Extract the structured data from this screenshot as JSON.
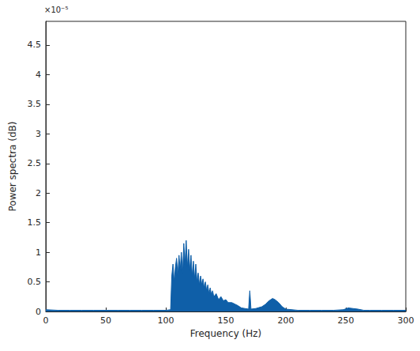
{
  "chart_data": {
    "type": "area",
    "x_label": "Frequency (Hz)",
    "y_label": "Power spectra (dB)",
    "annotations": [
      "×10⁻⁵"
    ],
    "color": "#0f5fa8",
    "grid": false,
    "x": [
      0,
      10,
      20,
      30,
      40,
      50,
      60,
      70,
      80,
      90,
      100,
      104,
      105,
      106,
      107,
      108,
      109,
      110,
      111,
      112,
      113,
      114,
      115,
      116,
      117,
      118,
      119,
      120,
      121,
      122,
      123,
      124,
      125,
      126,
      127,
      128,
      129,
      130,
      131,
      132,
      133,
      134,
      135,
      136,
      137,
      138,
      139,
      140,
      142,
      144,
      146,
      148,
      150,
      152,
      155,
      158,
      160,
      163,
      166,
      169,
      170,
      171,
      175,
      180,
      183,
      186,
      189,
      191,
      194,
      197,
      200,
      210,
      220,
      230,
      240,
      248,
      252,
      256,
      260,
      265,
      270,
      280,
      290,
      300
    ],
    "values": [
      0.03,
      0.02,
      0.02,
      0.02,
      0.02,
      0.02,
      0.02,
      0.02,
      0.02,
      0.02,
      0.02,
      0.03,
      0.6,
      0.8,
      0.5,
      0.75,
      0.9,
      0.6,
      0.95,
      0.7,
      1.0,
      0.65,
      1.15,
      0.8,
      1.2,
      0.75,
      1.05,
      0.7,
      0.95,
      0.6,
      0.85,
      0.55,
      0.8,
      0.5,
      0.65,
      0.45,
      0.6,
      0.45,
      0.55,
      0.4,
      0.5,
      0.35,
      0.45,
      0.3,
      0.4,
      0.28,
      0.35,
      0.25,
      0.3,
      0.2,
      0.25,
      0.18,
      0.2,
      0.15,
      0.15,
      0.12,
      0.1,
      0.06,
      0.05,
      0.04,
      0.35,
      0.04,
      0.05,
      0.08,
      0.12,
      0.18,
      0.22,
      0.2,
      0.15,
      0.08,
      0.04,
      0.02,
      0.02,
      0.02,
      0.02,
      0.03,
      0.06,
      0.05,
      0.04,
      0.02,
      0.02,
      0.02,
      0.02,
      0.02
    ],
    "xlim": [
      0,
      300
    ],
    "xticks": [
      0,
      50,
      100,
      150,
      200,
      250,
      300
    ],
    "ylim": [
      0,
      4.9
    ],
    "yticks": [
      0,
      0.5,
      1,
      1.5,
      2,
      2.5,
      3,
      3.5,
      4,
      4.5
    ]
  }
}
